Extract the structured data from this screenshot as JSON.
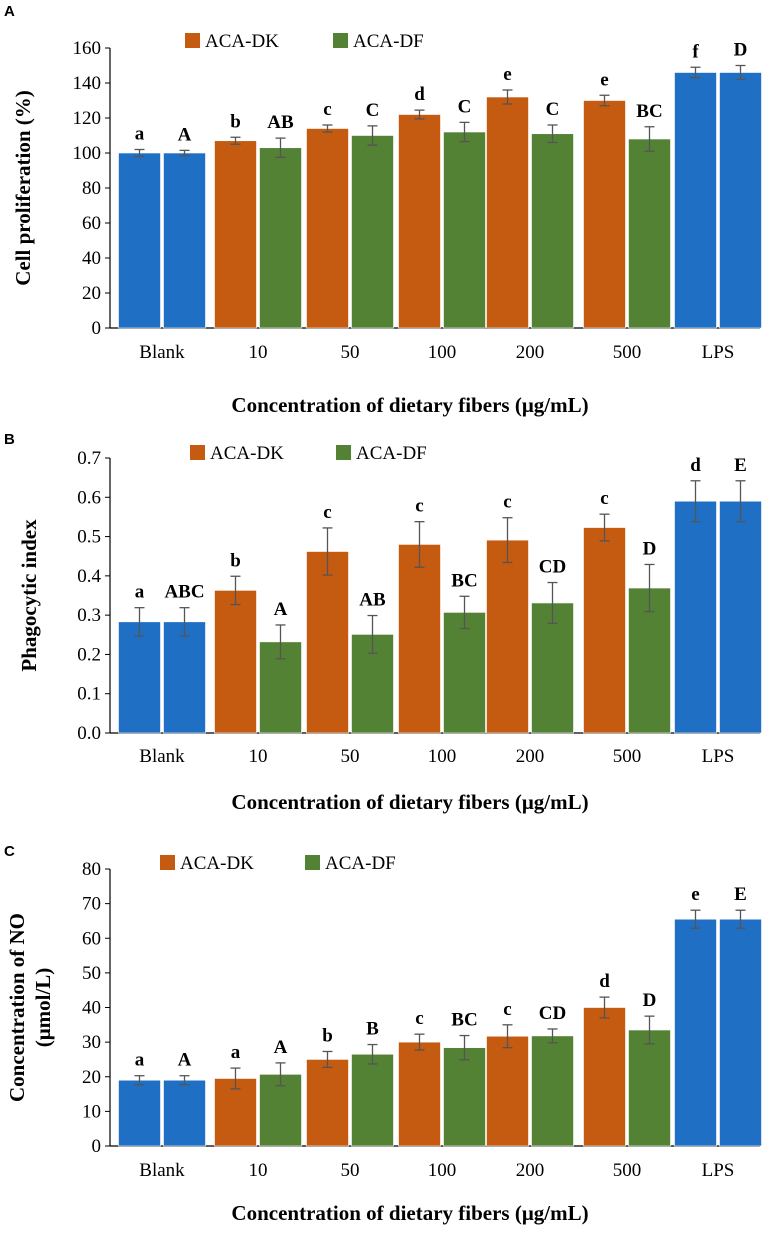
{
  "colors": {
    "control": "#1f6fc5",
    "dk": "#c55a11",
    "df": "#548235",
    "error": "#555555",
    "axis": "#000000"
  },
  "chart_data": [
    {
      "panel": "A",
      "type": "bar",
      "ylabel": "Cell proliferation (%)",
      "xlabel": "Concentration of dietary fibers (μg/mL)",
      "ylim": [
        0,
        160
      ],
      "yticks": [
        0,
        20,
        40,
        60,
        80,
        100,
        120,
        140,
        160
      ],
      "categories": [
        "Blank",
        "10",
        "50",
        "100",
        "200",
        "500",
        "LPS"
      ],
      "legend": [
        "ACA-DK",
        "ACA-DF"
      ],
      "series": [
        {
          "name": "ACA-DK",
          "values": [
            100,
            107,
            114,
            122,
            132,
            130,
            146
          ],
          "errors": [
            2,
            2,
            2,
            2.5,
            4,
            3,
            3
          ],
          "labels": [
            "a",
            "b",
            "c",
            "d",
            "e",
            "e",
            "f"
          ]
        },
        {
          "name": "ACA-DF",
          "values": [
            100,
            103,
            110,
            112,
            111,
            108,
            146
          ],
          "errors": [
            1.5,
            5.5,
            5.5,
            5.5,
            5,
            7,
            4
          ],
          "labels": [
            "A",
            "AB",
            "C",
            "C",
            "C",
            "BC",
            "D"
          ]
        }
      ]
    },
    {
      "panel": "B",
      "type": "bar",
      "ylabel": "Phagocytic index",
      "xlabel": "Concentration of dietary fibers (μg/mL)",
      "ylim": [
        0,
        0.7
      ],
      "yticks": [
        0,
        0.1,
        0.2,
        0.3,
        0.4,
        0.5,
        0.6,
        0.7
      ],
      "categories": [
        "Blank",
        "10",
        "50",
        "100",
        "200",
        "500",
        "LPS"
      ],
      "legend": [
        "ACA-DK",
        "ACA-DF"
      ],
      "series": [
        {
          "name": "ACA-DK",
          "values": [
            0.283,
            0.363,
            0.462,
            0.48,
            0.491,
            0.523,
            0.59
          ],
          "errors": [
            0.036,
            0.036,
            0.06,
            0.058,
            0.057,
            0.034,
            0.052
          ],
          "labels": [
            "a",
            "b",
            "c",
            "c",
            "c",
            "c",
            "d"
          ]
        },
        {
          "name": "ACA-DF",
          "values": [
            0.283,
            0.232,
            0.251,
            0.307,
            0.331,
            0.369,
            0.59
          ],
          "errors": [
            0.036,
            0.043,
            0.048,
            0.041,
            0.052,
            0.06,
            0.052
          ],
          "labels": [
            "ABC",
            "A",
            "AB",
            "BC",
            "CD",
            "D",
            "E"
          ]
        }
      ]
    },
    {
      "panel": "C",
      "type": "bar",
      "ylabel": "Concentration of NO (μmol/L)",
      "ylabel_lines": [
        "Concentration of NO",
        "(μmol/L)"
      ],
      "xlabel": "Concentration of dietary fibers (μg/mL)",
      "ylim": [
        0,
        80
      ],
      "yticks": [
        0,
        10,
        20,
        30,
        40,
        50,
        60,
        70,
        80
      ],
      "categories": [
        "Blank",
        "10",
        "50",
        "100",
        "200",
        "500",
        "LPS"
      ],
      "legend": [
        "ACA-DK",
        "ACA-DF"
      ],
      "series": [
        {
          "name": "ACA-DK",
          "values": [
            19,
            19.5,
            25,
            30,
            31.7,
            40,
            65.5
          ],
          "errors": [
            1.3,
            3,
            2.3,
            2.3,
            3.3,
            3,
            2.6
          ],
          "labels": [
            "a",
            "a",
            "b",
            "c",
            "c",
            "d",
            "e"
          ]
        },
        {
          "name": "ACA-DF",
          "values": [
            19,
            20.7,
            26.5,
            28.4,
            31.8,
            33.5,
            65.5
          ],
          "errors": [
            1.3,
            3.3,
            2.8,
            3.5,
            2,
            4,
            2.6
          ],
          "labels": [
            "A",
            "A",
            "B",
            "BC",
            "CD",
            "D",
            "E"
          ]
        }
      ]
    }
  ]
}
